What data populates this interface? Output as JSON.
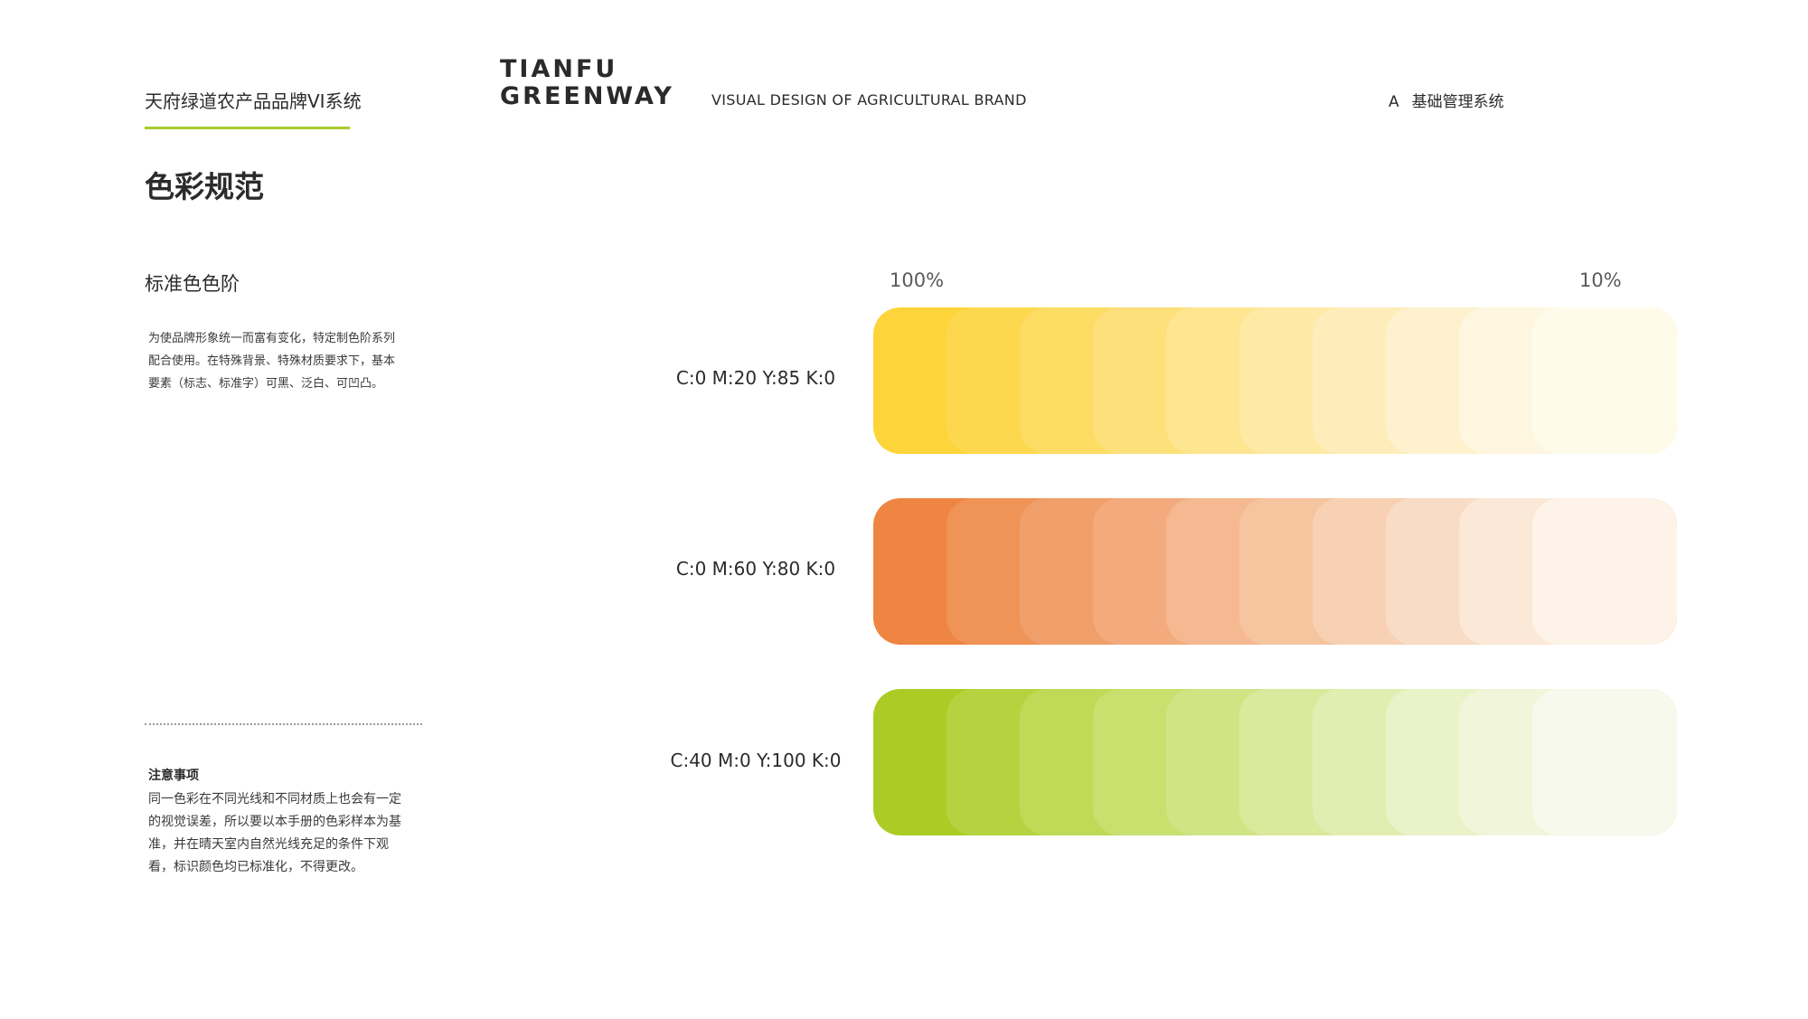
{
  "header": {
    "brand_cn": "天府绿道农产品品牌VI系统",
    "logo_line1": "TIANFU",
    "logo_line2": "GREENWAY",
    "subtitle_en": "VISUAL DESIGN OF AGRICULTURAL BRAND",
    "section_letter": "A",
    "section_name": "基础管理系统",
    "accent_color": "#a9cc2a"
  },
  "page": {
    "title": "色彩规范",
    "subtitle": "标准色色阶",
    "description_lines": [
      "为使品牌形象统一而富有变化，特定制色阶系列",
      "配合使用。在特殊背景、特殊材质要求下，基本",
      "要素（标志、标准字）可黑、泛白、可凹凸。"
    ]
  },
  "notes": {
    "title": "注意事项",
    "lines": [
      "同一色彩在不同光线和不同材质上也会有一定",
      "的视觉误差，所以要以本手册的色彩样本为基",
      "准，并在晴天室内自然光线充足的条件下观",
      "看，标识颜色均已标准化，不得更改。"
    ]
  },
  "scale_labels": {
    "start": "100%",
    "end": "10%"
  },
  "color_rows": [
    {
      "label": "C:0 M:20 Y:85 K:0",
      "swatches": [
        "#fdd43a",
        "#fdd84f",
        "#fddc64",
        "#fde07a",
        "#fee590",
        "#fee9a5",
        "#feedba",
        "#fef1cd",
        "#fff6e0",
        "#fffbea"
      ]
    },
    {
      "label": "C:0 M:60 Y:80 K:0",
      "swatches": [
        "#ef8542",
        "#f09356",
        "#f19f6a",
        "#f3ab7d",
        "#f5b890",
        "#f6c49f",
        "#f8d0b3",
        "#f9dcc5",
        "#fbe8d7",
        "#fdf3e8"
      ]
    },
    {
      "label": "C:40 M:0 Y:100 K:0",
      "swatches": [
        "#accc25",
        "#b6d33f",
        "#c0d957",
        "#c9df6e",
        "#d1e484",
        "#dae99b",
        "#e2eeb1",
        "#eaf2c8",
        "#f1f6db",
        "#f7f9ec"
      ]
    }
  ]
}
